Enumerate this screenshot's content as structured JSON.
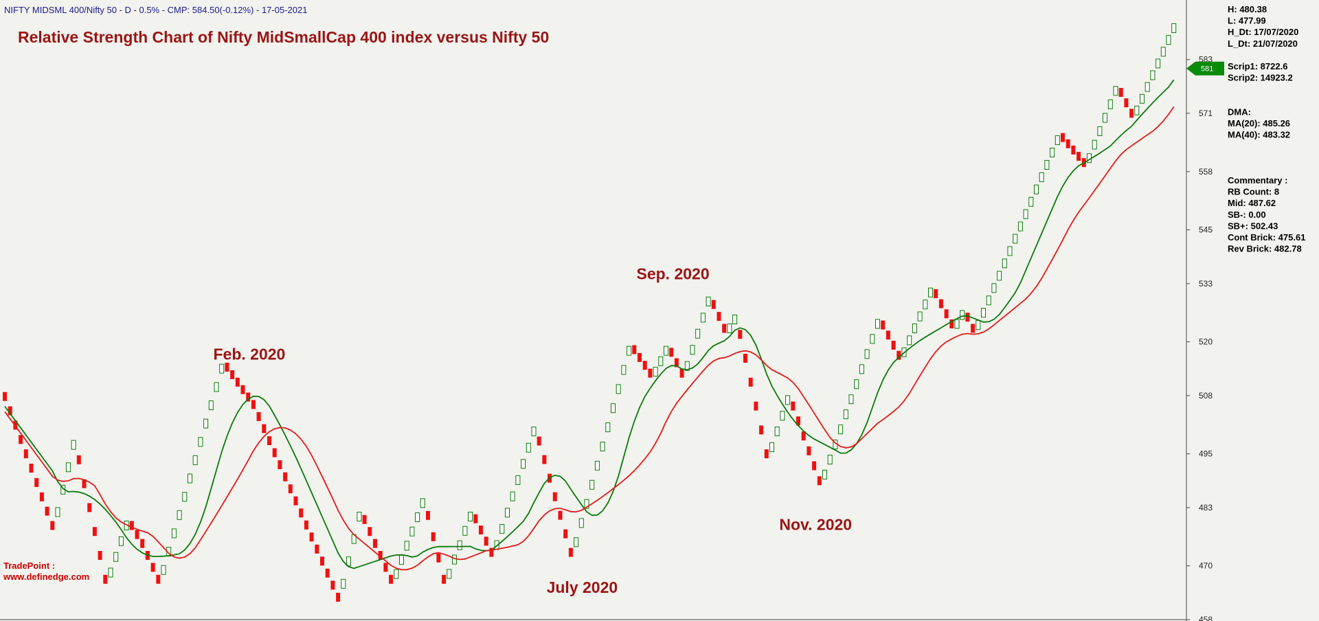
{
  "header": {
    "info": "NIFTY MIDSML 400/Nifty 50 - D - 0.5% - CMP: 584.50(-0.12%) - 17-05-2021"
  },
  "chart_data": {
    "type": "renko",
    "title": "Relative Strength Chart of Nifty MidSmallCap 400 index versus Nifty 50",
    "y_ticks": [
      458,
      470,
      483,
      495,
      508,
      520,
      533,
      545,
      558,
      571,
      583
    ],
    "ylim": [
      458,
      592
    ],
    "current_price_badge": 581,
    "annotations": [
      {
        "text": "Feb. 2020",
        "x_index": 45,
        "y": 516
      },
      {
        "text": "July 2020",
        "x_index": 108,
        "y": 464
      },
      {
        "text": "Sep. 2020",
        "x_index": 125,
        "y": 534
      },
      {
        "text": "Nov. 2020",
        "x_index": 152,
        "y": 478
      }
    ],
    "watermark": [
      "TradePoint :",
      "www.definedge.com"
    ],
    "pivots": [
      {
        "i": 0,
        "y": 510
      },
      {
        "i": 10,
        "y": 478
      },
      {
        "i": 14,
        "y": 498
      },
      {
        "i": 20,
        "y": 466
      },
      {
        "i": 24,
        "y": 480
      },
      {
        "i": 27,
        "y": 474
      },
      {
        "i": 30,
        "y": 466
      },
      {
        "i": 42,
        "y": 515
      },
      {
        "i": 48,
        "y": 505
      },
      {
        "i": 64,
        "y": 462
      },
      {
        "i": 68,
        "y": 482
      },
      {
        "i": 74,
        "y": 466
      },
      {
        "i": 80,
        "y": 485
      },
      {
        "i": 84,
        "y": 466
      },
      {
        "i": 89,
        "y": 482
      },
      {
        "i": 93,
        "y": 472
      },
      {
        "i": 101,
        "y": 501
      },
      {
        "i": 108,
        "y": 472
      },
      {
        "i": 119,
        "y": 519
      },
      {
        "i": 123,
        "y": 512
      },
      {
        "i": 126,
        "y": 519
      },
      {
        "i": 129,
        "y": 512
      },
      {
        "i": 134,
        "y": 530
      },
      {
        "i": 137,
        "y": 522
      },
      {
        "i": 139,
        "y": 526
      },
      {
        "i": 145,
        "y": 494
      },
      {
        "i": 149,
        "y": 508
      },
      {
        "i": 155,
        "y": 488
      },
      {
        "i": 166,
        "y": 525
      },
      {
        "i": 170,
        "y": 516
      },
      {
        "i": 176,
        "y": 532
      },
      {
        "i": 180,
        "y": 523
      },
      {
        "i": 182,
        "y": 527
      },
      {
        "i": 184,
        "y": 522
      },
      {
        "i": 200,
        "y": 566
      },
      {
        "i": 205,
        "y": 559
      },
      {
        "i": 211,
        "y": 577
      },
      {
        "i": 214,
        "y": 570
      },
      {
        "i": 222,
        "y": 591
      }
    ],
    "series": [
      {
        "name": "MA(20)",
        "color": "#0a7a0a"
      },
      {
        "name": "MA(40)",
        "color": "#e21b1b"
      }
    ]
  },
  "panel": {
    "lines": [
      "H: 480.38",
      "L: 477.99",
      "H_Dt: 17/07/2020",
      "L_Dt: 21/07/2020",
      "",
      "Scrip1: 8722.6",
      "Scrip2: 14923.2",
      "",
      "",
      "DMA:",
      "MA(20): 485.26",
      "MA(40): 483.32",
      "",
      "",
      "",
      "Commentary :",
      "RB Count: 8",
      "Mid: 487.62",
      "SB-: 0.00",
      "SB+: 502.43",
      "Cont Brick: 475.61",
      "Rev Brick: 482.78"
    ]
  },
  "colors": {
    "background": "#f2f2ee",
    "up_brick_stroke": "#0a7a0a",
    "up_brick_fill": "#ffffff",
    "down_brick": "#ee1111",
    "badge": "#0a8a0a"
  }
}
